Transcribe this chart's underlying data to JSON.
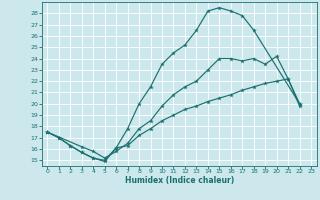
{
  "xlabel": "Humidex (Indice chaleur)",
  "bg_color": "#cce8ec",
  "grid_color": "#ffffff",
  "line_color": "#1a7070",
  "xlim": [
    -0.5,
    23.5
  ],
  "ylim": [
    14.5,
    29.0
  ],
  "xticks": [
    0,
    1,
    2,
    3,
    4,
    5,
    6,
    7,
    8,
    9,
    10,
    11,
    12,
    13,
    14,
    15,
    16,
    17,
    18,
    19,
    20,
    21,
    22,
    23
  ],
  "yticks": [
    15,
    16,
    17,
    18,
    19,
    20,
    21,
    22,
    23,
    24,
    25,
    26,
    27,
    28
  ],
  "curve_top_x": [
    0,
    1,
    2,
    3,
    4,
    5,
    6,
    7,
    8,
    9,
    10,
    11,
    12,
    13,
    14,
    15,
    16,
    17,
    18,
    22
  ],
  "curve_top_y": [
    17.5,
    17.0,
    16.3,
    15.7,
    15.2,
    15.0,
    16.1,
    17.8,
    20.0,
    21.5,
    23.5,
    24.5,
    25.2,
    26.5,
    28.2,
    28.5,
    28.2,
    27.8,
    26.5,
    20.0
  ],
  "curve_mid_x": [
    0,
    3,
    4,
    5,
    6,
    7,
    8,
    9,
    10,
    11,
    12,
    13,
    14,
    15,
    16,
    17,
    18,
    19,
    20,
    21,
    22
  ],
  "curve_mid_y": [
    17.5,
    16.2,
    15.8,
    15.2,
    15.8,
    16.5,
    17.8,
    18.5,
    19.8,
    20.8,
    21.5,
    22.0,
    23.0,
    24.0,
    24.0,
    23.8,
    24.0,
    23.5,
    24.2,
    22.2,
    20.0
  ],
  "curve_bot_x": [
    0,
    1,
    2,
    3,
    4,
    5,
    6,
    7,
    8,
    9,
    10,
    11,
    12,
    13,
    14,
    15,
    16,
    17,
    18,
    19,
    20,
    21,
    22
  ],
  "curve_bot_y": [
    17.5,
    17.0,
    16.3,
    15.7,
    15.2,
    14.9,
    16.1,
    16.3,
    17.2,
    17.8,
    18.5,
    19.0,
    19.5,
    19.8,
    20.2,
    20.5,
    20.8,
    21.2,
    21.5,
    21.8,
    22.0,
    22.2,
    19.8
  ]
}
